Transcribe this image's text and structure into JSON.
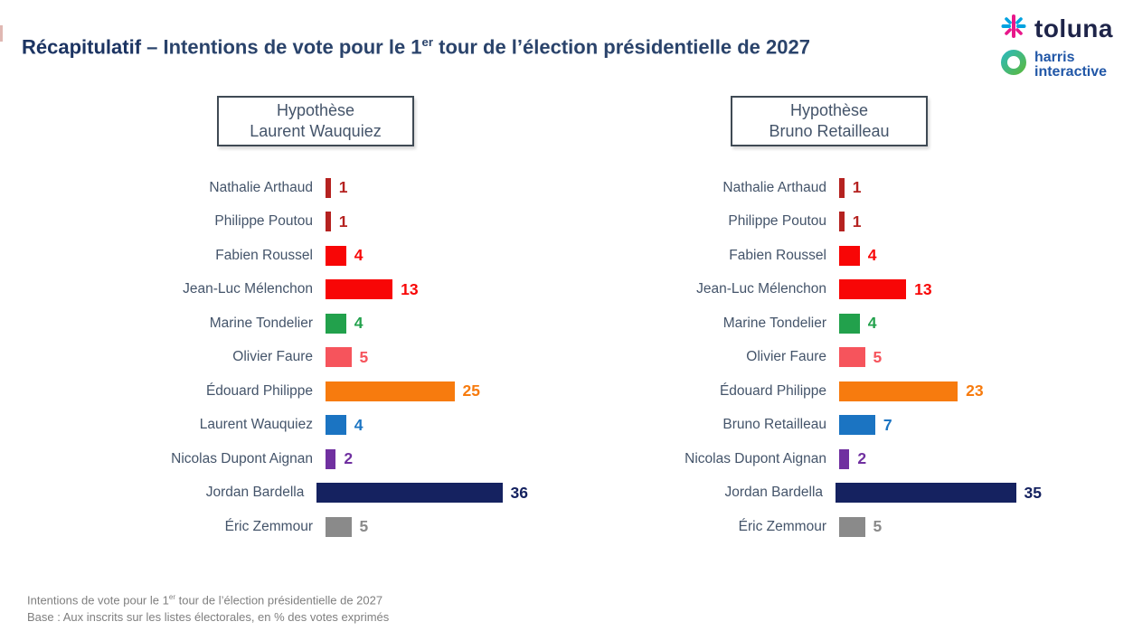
{
  "header": {
    "title_bold": "Récapitulatif",
    "title_sep": " – ",
    "title_part1": "Intentions de vote pour le 1",
    "title_sup": "er",
    "title_part2": " tour de l’élection présidentielle de 2027",
    "title_color": "#1C3462"
  },
  "logo": {
    "toluna_text": "toluna",
    "harris_line1": "harris",
    "harris_line2": "interactive",
    "toluna_color": "#1E2449",
    "harris_color": "#2157A7",
    "asterisk_pink": "#E8178A",
    "asterisk_blue": "#00A2E0",
    "ring_teal": "#2FB9B3",
    "ring_green": "#57B947"
  },
  "hypotheses": [
    {
      "line1": "Hypothèse",
      "line2": "Laurent Wauquiez"
    },
    {
      "line1": "Hypothèse",
      "line2": "Bruno Retailleau"
    }
  ],
  "footer": {
    "line1_before": "Intentions de vote pour le 1",
    "line1_sup": "er",
    "line1_after": " tour de l’élection présidentielle de 2027",
    "line2": "Base : Aux inscrits sur les listes électorales, en % des votes exprimés"
  },
  "chart_data": [
    {
      "type": "bar",
      "orientation": "horizontal",
      "title": "Hypothèse Laurent Wauquiez",
      "unit": "% des votes exprimés",
      "categories": [
        "Nathalie Arthaud",
        "Philippe Poutou",
        "Fabien Roussel",
        "Jean-Luc Mélenchon",
        "Marine Tondelier",
        "Olivier Faure",
        "Édouard Philippe",
        "Laurent Wauquiez",
        "Nicolas Dupont Aignan",
        "Jordan Bardella",
        "Éric Zemmour"
      ],
      "values": [
        1,
        1,
        4,
        13,
        4,
        5,
        25,
        4,
        2,
        36,
        5
      ],
      "bar_colors": [
        "#B52220",
        "#B52220",
        "#F80606",
        "#F80606",
        "#22A14C",
        "#F6545C",
        "#F77B0E",
        "#1B74C2",
        "#7030A0",
        "#152260",
        "#8A8A8A"
      ]
    },
    {
      "type": "bar",
      "orientation": "horizontal",
      "title": "Hypothèse Bruno Retailleau",
      "unit": "% des votes exprimés",
      "categories": [
        "Nathalie Arthaud",
        "Philippe Poutou",
        "Fabien Roussel",
        "Jean-Luc Mélenchon",
        "Marine Tondelier",
        "Olivier Faure",
        "Édouard Philippe",
        "Bruno Retailleau",
        "Nicolas Dupont Aignan",
        "Jordan Bardella",
        "Éric Zemmour"
      ],
      "values": [
        1,
        1,
        4,
        13,
        4,
        5,
        23,
        7,
        2,
        35,
        5
      ],
      "bar_colors": [
        "#B52220",
        "#B52220",
        "#F80606",
        "#F80606",
        "#22A14C",
        "#F6545C",
        "#F77B0E",
        "#1B74C2",
        "#7030A0",
        "#152260",
        "#8A8A8A"
      ]
    }
  ]
}
